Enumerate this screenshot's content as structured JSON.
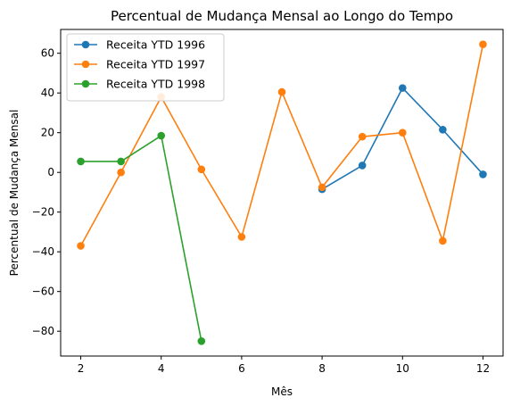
{
  "chart_data": {
    "type": "line",
    "title": "Percentual de Mudança Mensal ao Longo do Tempo",
    "xlabel": "Mês",
    "ylabel": "Percentual de Mudança Mensal",
    "xlim": [
      1.5,
      12.5
    ],
    "ylim": [
      -92.5,
      72
    ],
    "xticks": [
      2,
      4,
      6,
      8,
      10,
      12
    ],
    "yticks": [
      -80,
      -60,
      -40,
      -20,
      0,
      20,
      40,
      60
    ],
    "legend_position": "upper-left",
    "series": [
      {
        "name": "Receita YTD 1996",
        "color": "#1f77b4",
        "x": [
          8,
          9,
          10,
          11,
          12
        ],
        "values": [
          -8.5,
          3.5,
          42.5,
          21.5,
          -1
        ]
      },
      {
        "name": "Receita YTD 1997",
        "color": "#ff7f0e",
        "x": [
          2,
          3,
          4,
          5,
          6,
          7,
          8,
          9,
          10,
          11,
          12
        ],
        "values": [
          -37,
          0,
          38,
          1.5,
          -32.5,
          40.5,
          -7.5,
          18,
          20,
          -34.5,
          64.5
        ]
      },
      {
        "name": "Receita YTD 1998",
        "color": "#2ca02c",
        "x": [
          2,
          3,
          4,
          5
        ],
        "values": [
          5.5,
          5.5,
          18.5,
          -85
        ]
      }
    ]
  }
}
